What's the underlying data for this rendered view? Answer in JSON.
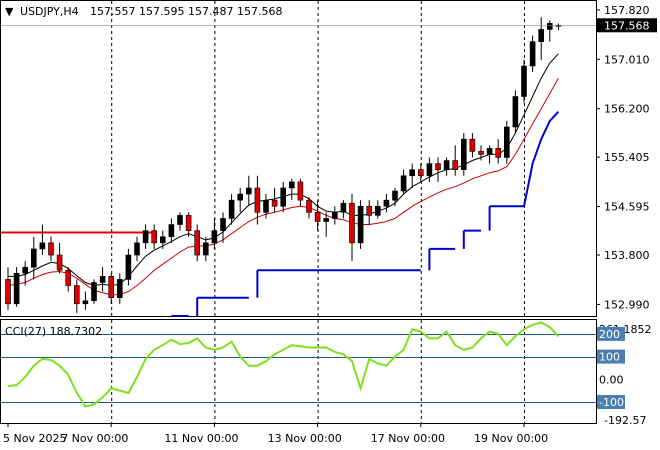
{
  "header": {
    "symbol_timeframe": "USDJPY,H4",
    "ohlc": "157.557 157.595 157.487 157.568"
  },
  "price_axis": {
    "ticks": [
      "157.820",
      "157.010",
      "156.200",
      "155.405",
      "154.595",
      "153.800",
      "152.990"
    ],
    "tick_values": [
      157.82,
      157.01,
      156.2,
      155.405,
      154.595,
      153.8,
      152.99
    ],
    "current_price": "157.568",
    "current_value": 157.568
  },
  "indicator": {
    "label": "CCI(27) 188.7302",
    "scale_max": "261.1852",
    "scale_min": "-192.57",
    "level_labels": [
      "200",
      "100",
      "0.00",
      "-100"
    ],
    "level_values": [
      200,
      100,
      0,
      -100
    ],
    "range": [
      -192.57,
      261.1852
    ]
  },
  "time_axis": {
    "labels": [
      "5 Nov 2025",
      "7 Nov 00:00",
      "11 Nov 00:00",
      "13 Nov 00:00",
      "17 Nov 00:00",
      "19 Nov 00:00"
    ],
    "label_bars": [
      0,
      12,
      24,
      36,
      48,
      60
    ]
  },
  "colors": {
    "bull_candle": "#000000",
    "bear_candle": "#dd0000",
    "fast_ma": "#000000",
    "slow_ma": "#cc0000",
    "stop_line": "#0000cc",
    "resistance_line": "#ee0000",
    "cci_line": "#7fe01e",
    "level_line": "#1f5a8a",
    "price_tag_bg": "#000000",
    "level_tag_bg": "#4a7fb0"
  },
  "chart_data": {
    "type": "candlestick",
    "y_range": [
      152.8,
      157.95
    ],
    "candles": [
      [
        153.4,
        153.6,
        152.9,
        153.0
      ],
      [
        153.0,
        153.6,
        152.95,
        153.5
      ],
      [
        153.5,
        153.7,
        153.3,
        153.6
      ],
      [
        153.6,
        154.1,
        153.4,
        153.9
      ],
      [
        153.9,
        154.3,
        153.8,
        154.0
      ],
      [
        154.0,
        154.1,
        153.7,
        153.8
      ],
      [
        153.8,
        154.0,
        153.5,
        153.55
      ],
      [
        153.55,
        153.6,
        153.2,
        153.3
      ],
      [
        153.3,
        153.4,
        152.85,
        153.0
      ],
      [
        153.0,
        153.2,
        152.9,
        153.05
      ],
      [
        153.05,
        153.4,
        153.0,
        153.35
      ],
      [
        153.35,
        153.6,
        153.2,
        153.45
      ],
      [
        153.45,
        153.5,
        153.0,
        153.1
      ],
      [
        153.1,
        153.5,
        153.0,
        153.4
      ],
      [
        153.4,
        153.9,
        153.3,
        153.8
      ],
      [
        153.8,
        154.1,
        153.7,
        154.0
      ],
      [
        154.0,
        154.3,
        153.9,
        154.2
      ],
      [
        154.2,
        154.3,
        153.9,
        154.0
      ],
      [
        154.0,
        154.2,
        153.9,
        154.1
      ],
      [
        154.1,
        154.4,
        154.0,
        154.3
      ],
      [
        154.3,
        154.5,
        154.2,
        154.45
      ],
      [
        154.45,
        154.5,
        154.1,
        154.2
      ],
      [
        154.2,
        154.3,
        153.7,
        153.8
      ],
      [
        153.8,
        154.1,
        153.7,
        154.0
      ],
      [
        154.0,
        154.4,
        153.9,
        154.2
      ],
      [
        154.2,
        154.5,
        154.0,
        154.4
      ],
      [
        154.4,
        154.8,
        154.3,
        154.7
      ],
      [
        154.7,
        154.9,
        154.5,
        154.8
      ],
      [
        154.8,
        155.1,
        154.6,
        154.9
      ],
      [
        154.9,
        155.1,
        154.3,
        154.5
      ],
      [
        154.5,
        154.8,
        154.4,
        154.7
      ],
      [
        154.7,
        154.9,
        154.5,
        154.6
      ],
      [
        154.6,
        155.0,
        154.5,
        154.9
      ],
      [
        154.9,
        155.05,
        154.7,
        155.0
      ],
      [
        155.0,
        155.05,
        154.6,
        154.7
      ],
      [
        154.7,
        154.75,
        154.4,
        154.5
      ],
      [
        154.5,
        154.7,
        154.2,
        154.35
      ],
      [
        154.35,
        154.5,
        154.1,
        154.4
      ],
      [
        154.4,
        154.6,
        154.3,
        154.5
      ],
      [
        154.5,
        154.7,
        154.4,
        154.65
      ],
      [
        154.65,
        154.8,
        153.7,
        154.0
      ],
      [
        154.0,
        154.7,
        153.9,
        154.6
      ],
      [
        154.6,
        154.7,
        154.3,
        154.45
      ],
      [
        154.45,
        154.7,
        154.4,
        154.6
      ],
      [
        154.6,
        154.8,
        154.5,
        154.7
      ],
      [
        154.7,
        154.9,
        154.6,
        154.85
      ],
      [
        154.85,
        155.2,
        154.8,
        155.1
      ],
      [
        155.1,
        155.3,
        154.9,
        155.2
      ],
      [
        155.2,
        155.3,
        155.0,
        155.1
      ],
      [
        155.1,
        155.4,
        155.0,
        155.3
      ],
      [
        155.3,
        155.4,
        155.0,
        155.2
      ],
      [
        155.2,
        155.4,
        155.1,
        155.35
      ],
      [
        155.35,
        155.6,
        155.1,
        155.2
      ],
      [
        155.2,
        155.8,
        155.1,
        155.7
      ],
      [
        155.7,
        155.8,
        155.4,
        155.5
      ],
      [
        155.5,
        155.6,
        155.35,
        155.45
      ],
      [
        155.45,
        155.6,
        155.3,
        155.55
      ],
      [
        155.55,
        155.7,
        155.3,
        155.4
      ],
      [
        155.4,
        156.0,
        155.3,
        155.9
      ],
      [
        155.9,
        156.5,
        155.8,
        156.4
      ],
      [
        156.4,
        157.0,
        156.3,
        156.9
      ],
      [
        156.9,
        157.4,
        156.8,
        157.3
      ],
      [
        157.3,
        157.7,
        157.0,
        157.5
      ],
      [
        157.5,
        157.65,
        157.3,
        157.6
      ],
      [
        157.557,
        157.595,
        157.487,
        157.568
      ]
    ],
    "fast_ma": [
      153.45,
      153.45,
      153.48,
      153.55,
      153.62,
      153.68,
      153.66,
      153.58,
      153.46,
      153.35,
      153.3,
      153.32,
      153.3,
      153.32,
      153.45,
      153.62,
      153.78,
      153.88,
      153.95,
      154.02,
      154.1,
      154.15,
      154.1,
      154.05,
      154.08,
      154.18,
      154.33,
      154.48,
      154.62,
      154.68,
      154.7,
      154.72,
      154.76,
      154.8,
      154.8,
      154.72,
      154.6,
      154.52,
      154.5,
      154.52,
      154.45,
      154.45,
      154.47,
      154.52,
      154.57,
      154.65,
      154.8,
      154.92,
      155.0,
      155.08,
      155.15,
      155.2,
      155.22,
      155.28,
      155.35,
      155.4,
      155.45,
      155.45,
      155.55,
      155.8,
      156.1,
      156.4,
      156.7,
      156.95,
      157.1
    ],
    "slow_ma": [
      153.3,
      153.32,
      153.35,
      153.42,
      153.48,
      153.52,
      153.53,
      153.5,
      153.42,
      153.32,
      153.22,
      153.18,
      153.15,
      153.15,
      153.2,
      153.3,
      153.42,
      153.55,
      153.65,
      153.75,
      153.85,
      153.93,
      153.95,
      153.95,
      153.98,
      154.05,
      154.15,
      154.25,
      154.35,
      154.42,
      154.47,
      154.5,
      154.54,
      154.58,
      154.6,
      154.58,
      154.52,
      154.45,
      154.4,
      154.38,
      154.33,
      154.3,
      154.3,
      154.32,
      154.35,
      154.4,
      154.5,
      154.6,
      154.68,
      154.75,
      154.82,
      154.88,
      154.92,
      154.98,
      155.05,
      155.1,
      155.15,
      155.18,
      155.25,
      155.45,
      155.7,
      155.95,
      156.2,
      156.45,
      156.7
    ],
    "stop_segments": [
      [
        19,
        21,
        152.8
      ],
      [
        22,
        28,
        153.1
      ],
      [
        29,
        48,
        153.55
      ],
      [
        49,
        52,
        153.9
      ],
      [
        53,
        55,
        154.2
      ],
      [
        56,
        60,
        154.6
      ]
    ],
    "stop_tail": [
      [
        60,
        154.6
      ],
      [
        61,
        155.3
      ],
      [
        62,
        155.7
      ],
      [
        63,
        156.0
      ],
      [
        64,
        156.15
      ]
    ],
    "resistance": {
      "from": 0,
      "to": 17,
      "value": 154.17
    },
    "cci": [
      -30,
      -25,
      10,
      60,
      90,
      85,
      60,
      20,
      -60,
      -120,
      -110,
      -80,
      -40,
      -50,
      -60,
      10,
      90,
      130,
      150,
      175,
      155,
      160,
      180,
      140,
      130,
      140,
      165,
      100,
      60,
      60,
      80,
      110,
      130,
      150,
      145,
      140,
      140,
      140,
      120,
      110,
      80,
      -40,
      90,
      70,
      60,
      100,
      130,
      220,
      210,
      180,
      180,
      210,
      150,
      130,
      140,
      180,
      210,
      200,
      150,
      190,
      220,
      240,
      250,
      230,
      188.73
    ]
  }
}
